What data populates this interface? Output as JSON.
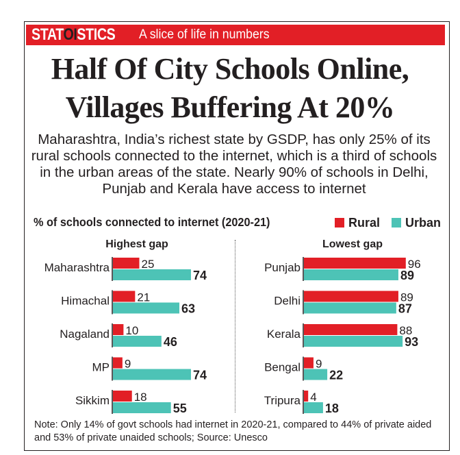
{
  "banner": {
    "brand_pre": "STAT",
    "brand_mid": "OI",
    "brand_post": "STICS",
    "tagline": "A slice of life in numbers"
  },
  "headline": {
    "line1": "Half Of City Schools Online,",
    "line2": "Villages Buffering At 20%"
  },
  "subtitle": "Maharashtra, India’s richest state by GSDP, has only 25% of its rural schools connected to the internet, which is a third of schools in the urban areas of the state. Nearly 90% of schools in Delhi, Punjab and Kerala have access to internet",
  "note": "Note: Only 14% of govt schools had internet in 2020-21, compared to 44% of private aided and 53% of private unaided schools; Source: Unesco",
  "colors": {
    "brand_red": "#e21f26",
    "rural": "#e21f26",
    "urban": "#4dc3b6",
    "text": "#231f20"
  },
  "chart_data": {
    "type": "bar",
    "orientation": "horizontal",
    "title": "% of schools connected to internet (2020-21)",
    "legend": [
      {
        "name": "Rural",
        "color": "#e21f26"
      },
      {
        "name": "Urban",
        "color": "#4dc3b6"
      }
    ],
    "legend_position": "top-right",
    "panels": [
      {
        "title": "Highest gap",
        "categories": [
          "Maharashtra",
          "Himachal",
          "Nagaland",
          "MP",
          "Sikkim"
        ],
        "series": [
          {
            "name": "Rural",
            "values": [
              25,
              21,
              10,
              9,
              18
            ]
          },
          {
            "name": "Urban",
            "values": [
              74,
              63,
              46,
              74,
              55
            ]
          }
        ]
      },
      {
        "title": "Lowest gap",
        "categories": [
          "Punjab",
          "Delhi",
          "Kerala",
          "Bengal",
          "Tripura"
        ],
        "series": [
          {
            "name": "Rural",
            "values": [
              96,
              89,
              88,
              9,
              4
            ]
          },
          {
            "name": "Urban",
            "values": [
              89,
              87,
              93,
              22,
              18
            ]
          }
        ]
      }
    ]
  }
}
